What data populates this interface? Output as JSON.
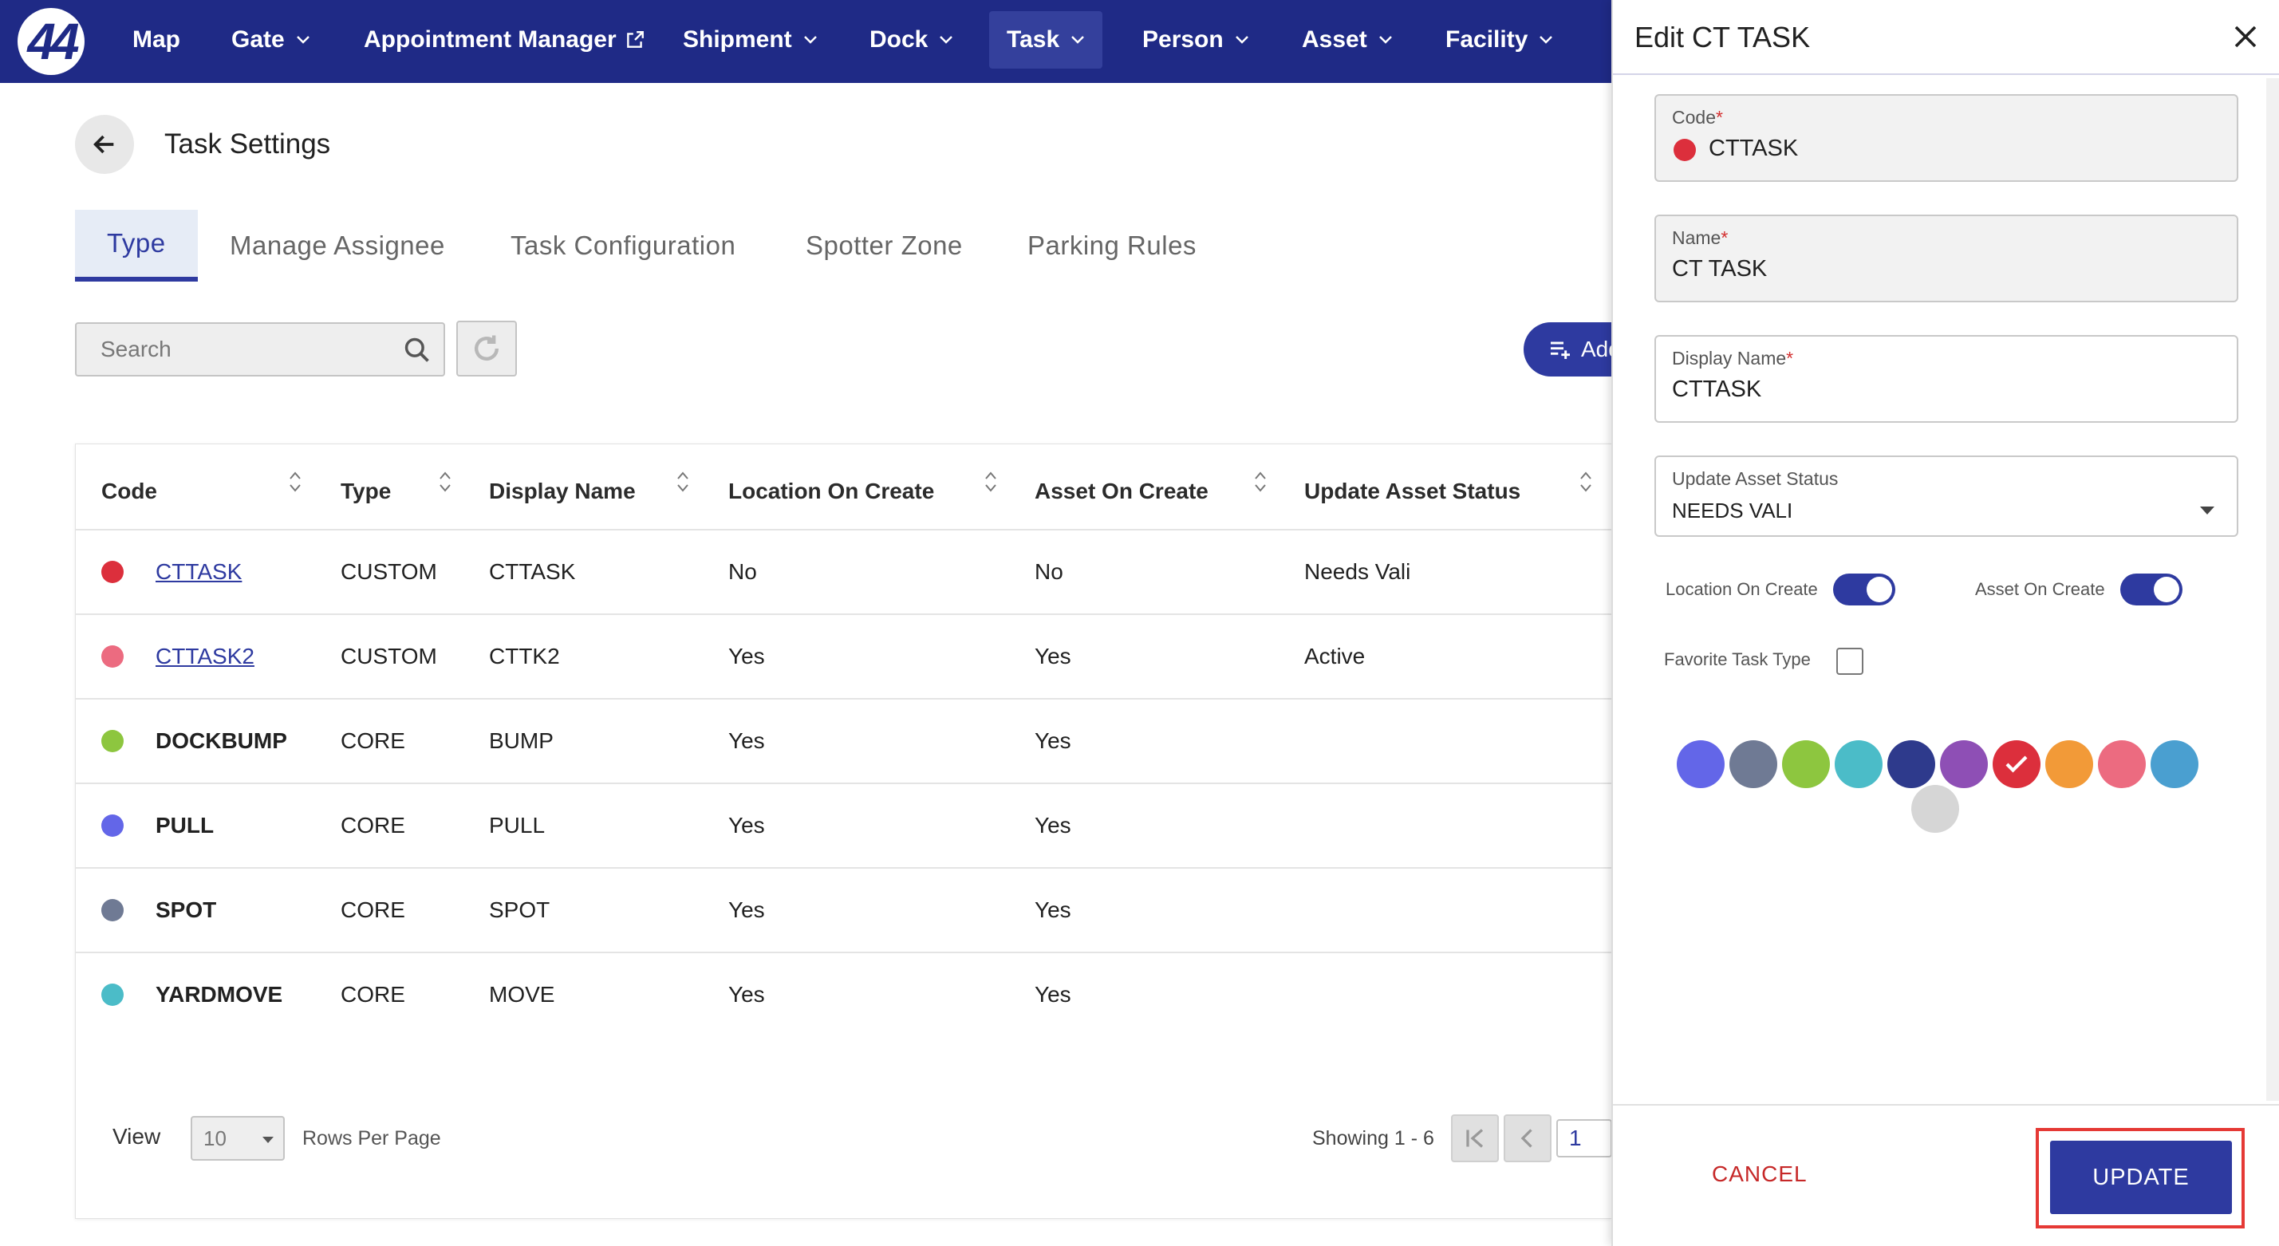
{
  "nav": {
    "logo": "44",
    "items": [
      {
        "label": "Map",
        "dropdown": false,
        "external": false
      },
      {
        "label": "Gate",
        "dropdown": true,
        "external": false
      },
      {
        "label": "Appointment Manager",
        "dropdown": false,
        "external": true
      },
      {
        "label": "Shipment",
        "dropdown": true,
        "external": false
      },
      {
        "label": "Dock",
        "dropdown": true,
        "external": false
      },
      {
        "label": "Task",
        "dropdown": true,
        "external": false,
        "active": true
      },
      {
        "label": "Person",
        "dropdown": true,
        "external": false
      },
      {
        "label": "Asset",
        "dropdown": true,
        "external": false
      },
      {
        "label": "Facility",
        "dropdown": true,
        "external": false
      }
    ]
  },
  "page": {
    "title": "Task Settings"
  },
  "tabs": [
    {
      "label": "Type",
      "active": true
    },
    {
      "label": "Manage Assignee"
    },
    {
      "label": "Task Configuration"
    },
    {
      "label": "Spotter Zone"
    },
    {
      "label": "Parking Rules"
    }
  ],
  "toolbar": {
    "search_placeholder": "Search",
    "add_label": "Add"
  },
  "table": {
    "columns": [
      "Code",
      "Type",
      "Display Name",
      "Location On Create",
      "Asset On Create",
      "Update Asset Status"
    ],
    "rows": [
      {
        "color": "#dc2f3c",
        "code": "CTTASK",
        "link": true,
        "type": "CUSTOM",
        "display": "CTTASK",
        "location": "No",
        "asset": "No",
        "status": "Needs Vali"
      },
      {
        "color": "#ec6b80",
        "code": "CTTASK2",
        "link": true,
        "type": "CUSTOM",
        "display": "CTTK2",
        "location": "Yes",
        "asset": "Yes",
        "status": "Active"
      },
      {
        "color": "#8dc63f",
        "code": "DOCKBUMP",
        "link": false,
        "type": "CORE",
        "display": "BUMP",
        "location": "Yes",
        "asset": "Yes",
        "status": ""
      },
      {
        "color": "#6366e8",
        "code": "PULL",
        "link": false,
        "type": "CORE",
        "display": "PULL",
        "location": "Yes",
        "asset": "Yes",
        "status": ""
      },
      {
        "color": "#6f7a94",
        "code": "SPOT",
        "link": false,
        "type": "CORE",
        "display": "SPOT",
        "location": "Yes",
        "asset": "Yes",
        "status": ""
      },
      {
        "color": "#4bbcc8",
        "code": "YARDMOVE",
        "link": false,
        "type": "CORE",
        "display": "MOVE",
        "location": "Yes",
        "asset": "Yes",
        "status": ""
      }
    ],
    "footer": {
      "view_label": "View",
      "rows_per_page_value": "10",
      "rows_per_page_label": "Rows Per Page",
      "showing": "Showing 1 - 6",
      "page_input": "1"
    }
  },
  "panel": {
    "title": "Edit CT TASK",
    "code_label": "Code",
    "code_value": "CTTASK",
    "code_color": "#dc2f3c",
    "name_label": "Name",
    "name_value": "CT TASK",
    "display_label": "Display Name",
    "display_value": "CTTASK",
    "status_label": "Update Asset Status",
    "status_value": "NEEDS VALI",
    "location_toggle_label": "Location On Create",
    "location_toggle_on": true,
    "asset_toggle_label": "Asset On Create",
    "asset_toggle_on": true,
    "favorite_label": "Favorite Task Type",
    "favorite_checked": false,
    "colors": [
      "#6366e8",
      "#6f7a94",
      "#8dc63f",
      "#4bbcc8",
      "#2e3a8c",
      "#8e4fb5",
      "#dc2f3c",
      "#f29a38",
      "#ec6b80",
      "#4a9fd0",
      "#d6d6d6"
    ],
    "selected_color": "#dc2f3c",
    "cancel_label": "CANCEL",
    "update_label": "UPDATE"
  }
}
